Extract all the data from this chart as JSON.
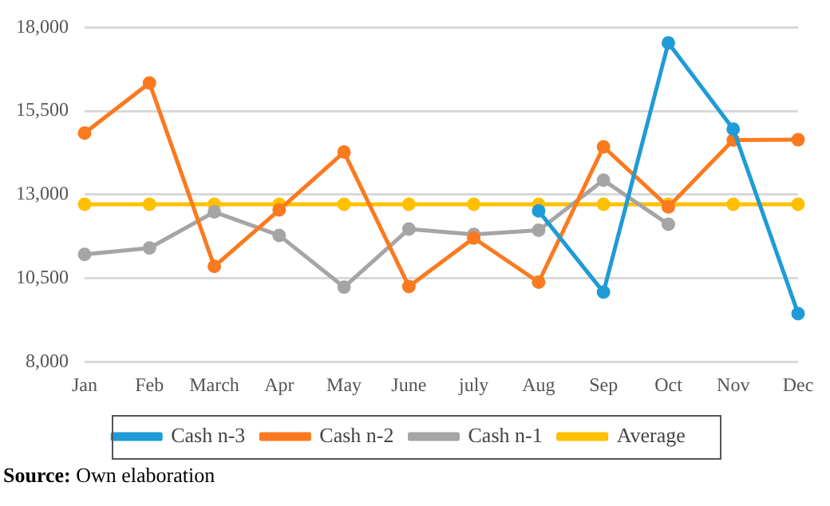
{
  "chart_data": {
    "type": "line",
    "categories": [
      "Jan",
      "Feb",
      "March",
      "Apr",
      "May",
      "June",
      "july",
      "Aug",
      "Sep",
      "Oct",
      "Nov",
      "Dec"
    ],
    "series": [
      {
        "name": "Cash n-3",
        "color": "#1f9bd7",
        "values": [
          null,
          null,
          null,
          null,
          null,
          null,
          null,
          12510,
          10080,
          17540,
          14960,
          9440
        ]
      },
      {
        "name": "Cash n-2",
        "color": "#fb7a1f",
        "values": [
          14840,
          16340,
          10850,
          12540,
          14270,
          10250,
          11700,
          10380,
          14430,
          12630,
          14630,
          14640
        ]
      },
      {
        "name": "Cash n-1",
        "color": "#a5a5a5",
        "values": [
          11210,
          11400,
          12480,
          11780,
          10230,
          11970,
          11810,
          11930,
          13430,
          12110,
          null,
          null
        ]
      },
      {
        "name": "Average",
        "color": "#ffc000",
        "values": [
          12710,
          12710,
          12710,
          12710,
          12710,
          12710,
          12710,
          12710,
          12710,
          12710,
          12710,
          12710
        ]
      }
    ],
    "ylim": [
      8000,
      18000
    ],
    "yticks": [
      {
        "value": 8000,
        "label": "8,000"
      },
      {
        "value": 10500,
        "label": "10,500"
      },
      {
        "value": 13000,
        "label": "13,000"
      },
      {
        "value": 15500,
        "label": "15,500"
      },
      {
        "value": 18000,
        "label": "18,000"
      }
    ],
    "grid": "y",
    "legend": "bottom",
    "marker": "circle",
    "line_style": "solid",
    "annotations": [
      "Source: Own elaboration"
    ]
  }
}
